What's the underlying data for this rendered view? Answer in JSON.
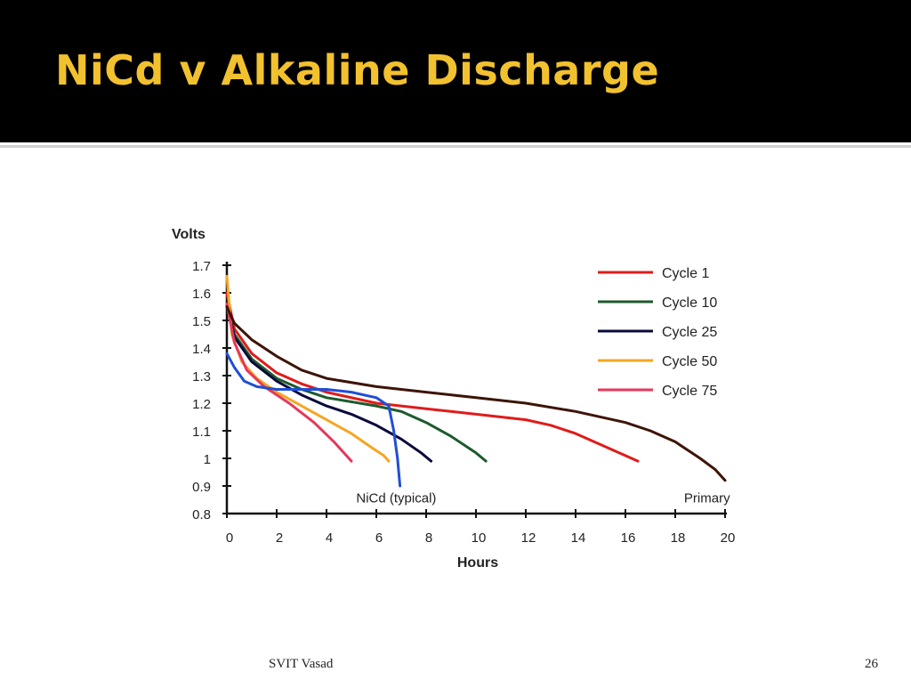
{
  "slide": {
    "title": "NiCd v Alkaline Discharge",
    "footer_left": "SVIT Vasad",
    "page_number": "26",
    "title_color": "#f2c12e",
    "title_bar_color": "#000000"
  },
  "chart_data": {
    "type": "line",
    "title": "",
    "xlabel": "Hours",
    "ylabel": "Volts",
    "xlim": [
      0,
      20
    ],
    "ylim": [
      0.8,
      1.7
    ],
    "x_ticks": [
      0,
      2,
      4,
      6,
      8,
      10,
      12,
      14,
      16,
      18,
      20
    ],
    "y_ticks": [
      1.7,
      1.6,
      1.5,
      1.4,
      1.3,
      1.2,
      1.1,
      1,
      0.9,
      0.8
    ],
    "grid": false,
    "legend_position": "top-right",
    "annotations": [
      {
        "text": "NiCd (typical)",
        "x": 6.8,
        "y": 0.86
      },
      {
        "text": "Primary",
        "x": 19.7,
        "y": 0.86
      }
    ],
    "series": [
      {
        "name": "Cycle 1",
        "color": "#e01b1b",
        "points": [
          [
            0,
            1.6
          ],
          [
            0.3,
            1.47
          ],
          [
            1,
            1.38
          ],
          [
            2,
            1.31
          ],
          [
            3,
            1.27
          ],
          [
            4,
            1.24
          ],
          [
            6,
            1.2
          ],
          [
            8,
            1.18
          ],
          [
            10,
            1.16
          ],
          [
            12,
            1.14
          ],
          [
            13,
            1.12
          ],
          [
            14,
            1.09
          ],
          [
            15,
            1.05
          ],
          [
            16,
            1.01
          ],
          [
            16.5,
            0.99
          ]
        ]
      },
      {
        "name": "Cycle 10",
        "color": "#1d5a2c",
        "points": [
          [
            0,
            1.56
          ],
          [
            0.3,
            1.45
          ],
          [
            1,
            1.36
          ],
          [
            2,
            1.29
          ],
          [
            3,
            1.25
          ],
          [
            4,
            1.22
          ],
          [
            6,
            1.19
          ],
          [
            7,
            1.17
          ],
          [
            8,
            1.13
          ],
          [
            9,
            1.08
          ],
          [
            10,
            1.02
          ],
          [
            10.4,
            0.99
          ]
        ]
      },
      {
        "name": "Cycle 25",
        "color": "#0a0a3c",
        "points": [
          [
            0,
            1.56
          ],
          [
            0.3,
            1.44
          ],
          [
            1,
            1.35
          ],
          [
            2,
            1.28
          ],
          [
            3,
            1.23
          ],
          [
            4,
            1.19
          ],
          [
            5,
            1.16
          ],
          [
            6,
            1.12
          ],
          [
            7,
            1.07
          ],
          [
            7.8,
            1.02
          ],
          [
            8.2,
            0.99
          ]
        ]
      },
      {
        "name": "Cycle 50",
        "color": "#f5a623",
        "points": [
          [
            0,
            1.66
          ],
          [
            0.2,
            1.45
          ],
          [
            0.6,
            1.35
          ],
          [
            1.2,
            1.29
          ],
          [
            2,
            1.24
          ],
          [
            3,
            1.19
          ],
          [
            4,
            1.14
          ],
          [
            5,
            1.09
          ],
          [
            5.8,
            1.04
          ],
          [
            6.3,
            1.01
          ],
          [
            6.5,
            0.99
          ]
        ]
      },
      {
        "name": "Cycle 75",
        "color": "#e8365a",
        "points": [
          [
            0,
            1.56
          ],
          [
            0.3,
            1.42
          ],
          [
            0.8,
            1.32
          ],
          [
            1.5,
            1.26
          ],
          [
            2.5,
            1.2
          ],
          [
            3.5,
            1.13
          ],
          [
            4.3,
            1.06
          ],
          [
            4.8,
            1.01
          ],
          [
            5,
            0.99
          ]
        ]
      },
      {
        "name": "Primary",
        "color": "#3d1408",
        "points": [
          [
            0,
            1.55
          ],
          [
            0.3,
            1.49
          ],
          [
            1,
            1.43
          ],
          [
            2,
            1.37
          ],
          [
            3,
            1.32
          ],
          [
            4,
            1.29
          ],
          [
            6,
            1.26
          ],
          [
            8,
            1.24
          ],
          [
            10,
            1.22
          ],
          [
            12,
            1.2
          ],
          [
            14,
            1.17
          ],
          [
            16,
            1.13
          ],
          [
            17,
            1.1
          ],
          [
            18,
            1.06
          ],
          [
            19,
            1.0
          ],
          [
            19.6,
            0.96
          ],
          [
            20,
            0.92
          ]
        ]
      },
      {
        "name": "NiCd (typical)",
        "color": "#1f4fd6",
        "points": [
          [
            0,
            1.38
          ],
          [
            0.3,
            1.33
          ],
          [
            0.7,
            1.28
          ],
          [
            1.2,
            1.26
          ],
          [
            2,
            1.25
          ],
          [
            3,
            1.25
          ],
          [
            4,
            1.25
          ],
          [
            5,
            1.24
          ],
          [
            6,
            1.22
          ],
          [
            6.5,
            1.19
          ],
          [
            6.7,
            1.1
          ],
          [
            6.85,
            1.0
          ],
          [
            6.95,
            0.9
          ]
        ]
      }
    ],
    "legend": [
      "Cycle 1",
      "Cycle 10",
      "Cycle 25",
      "Cycle 50",
      "Cycle 75"
    ]
  }
}
